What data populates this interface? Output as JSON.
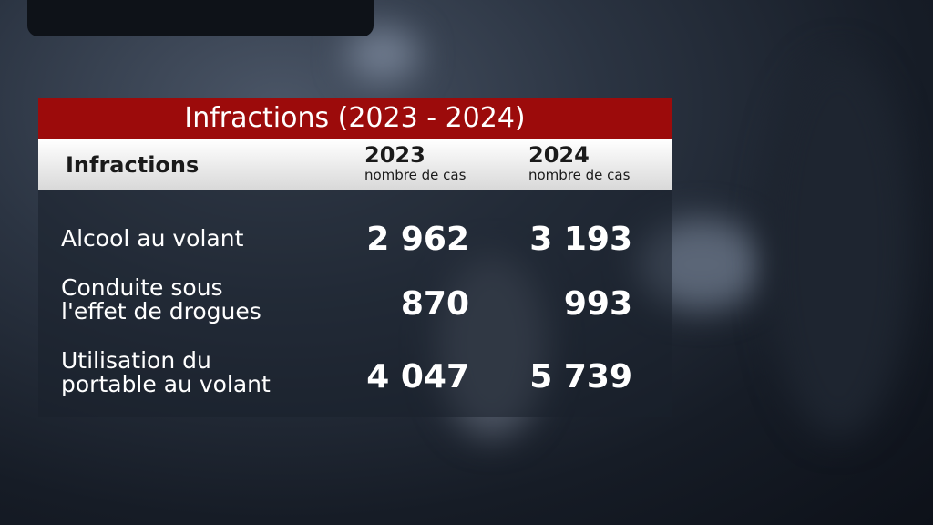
{
  "title": "Infractions (2023 - 2024)",
  "table": {
    "columns": [
      {
        "label": "Infractions"
      },
      {
        "label": "2023",
        "sublabel": "nombre de cas"
      },
      {
        "label": "2024",
        "sublabel": "nombre de cas"
      }
    ],
    "rows": [
      [
        "Alcool au volant",
        "2 962",
        "3 193"
      ],
      [
        "Conduite sous\nl'effet de drogues",
        "870",
        "993"
      ],
      [
        "Utilisation du\nportable au volant",
        "4 047",
        "5 739"
      ]
    ]
  }
}
